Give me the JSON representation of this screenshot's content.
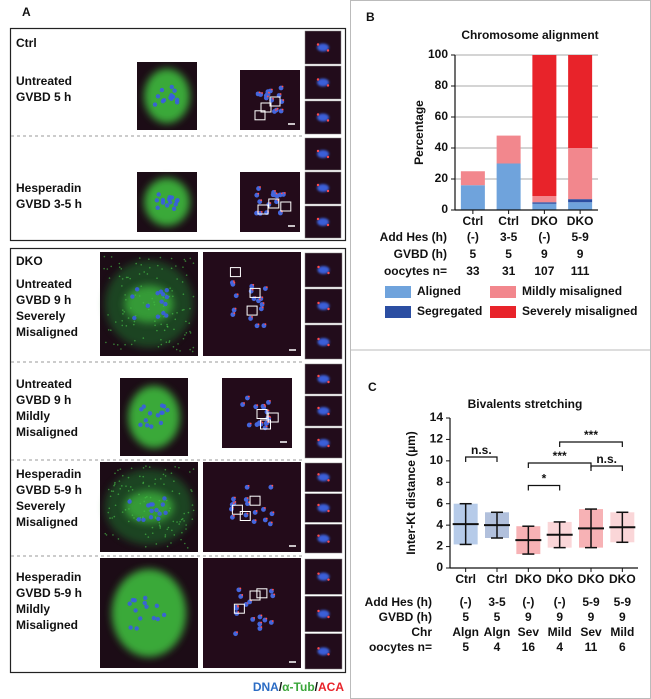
{
  "panel_a": {
    "label": "A",
    "ctrl": {
      "title": "Ctrl",
      "rows": [
        {
          "lines": [
            "Untreated",
            "GVBD 5 h"
          ]
        },
        {
          "lines": [
            "Hesperadin",
            "GVBD 3-5 h"
          ]
        }
      ]
    },
    "dko": {
      "title": "DKO",
      "rows": [
        {
          "lines": [
            "Untreated",
            "GVBD 9 h"
          ],
          "status": [
            "Severely",
            "Misaligned"
          ],
          "color": "#e8232a"
        },
        {
          "lines": [
            "Untreated",
            "GVBD 9 h"
          ],
          "status": [
            "Mildly",
            "Misaligned"
          ],
          "color": "#e45fb0"
        },
        {
          "lines": [
            "Hesperadin",
            "GVBD 5-9 h"
          ],
          "status": [
            "Severely",
            "Misaligned"
          ],
          "color": "#e8232a"
        },
        {
          "lines": [
            "Hesperadin",
            "GVBD 5-9 h"
          ],
          "status": [
            "Mildly",
            "Misaligned"
          ],
          "color": "#e45fb0"
        }
      ]
    },
    "legend": {
      "dna": "DNA",
      "sep": "/",
      "tub": "α-Tub",
      "aca": "ACA",
      "dna_color": "#2b6cc4",
      "tub_color": "#3aa63a",
      "aca_color": "#e8232a"
    }
  },
  "chart_data": [
    {
      "type": "bar",
      "stacked": true,
      "label": "B",
      "title": "Chromosome alignment",
      "y_label": "Percentage",
      "categories": [
        "Ctrl",
        "Ctrl",
        "DKO",
        "DKO"
      ],
      "series": [
        {
          "name": "Aligned",
          "color": "#6fa3dc",
          "values": [
            16,
            30,
            4,
            5
          ]
        },
        {
          "name": "Segregated",
          "color": "#2b4ea2",
          "values": [
            0,
            0,
            1,
            2
          ]
        },
        {
          "name": "Mildly misaligned",
          "color": "#f2878d",
          "values": [
            9,
            18,
            4,
            33
          ]
        },
        {
          "name": "Severely misaligned",
          "color": "#e8232a",
          "values": [
            0,
            0,
            91,
            60
          ]
        }
      ],
      "ylim": [
        0,
        100
      ],
      "yticks": [
        0,
        20,
        40,
        60,
        80,
        100
      ],
      "grid": true,
      "table": [
        {
          "label": "Add Hes (h)",
          "values": [
            "(-)",
            "3-5",
            "(-)",
            "5-9"
          ]
        },
        {
          "label": "GVBD (h)",
          "values": [
            "5",
            "5",
            "9",
            "9"
          ]
        },
        {
          "label": "oocytes n=",
          "values": [
            "33",
            "31",
            "107",
            "111"
          ]
        }
      ]
    },
    {
      "type": "dotplot",
      "label": "C",
      "title": "Bivalents stretching",
      "y_label": "Inter-Kt distance (µm)",
      "categories": [
        "Ctrl",
        "Ctrl",
        "DKO",
        "DKO",
        "DKO",
        "DKO"
      ],
      "values": [
        4.1,
        4.0,
        2.6,
        3.1,
        3.7,
        3.8
      ],
      "errors": [
        1.9,
        1.2,
        1.3,
        1.2,
        1.8,
        1.4
      ],
      "colors": [
        "#2f6bbf",
        "#1f4a9a",
        "#e8232a",
        "#f08a90",
        "#e8232a",
        "#f08a90"
      ],
      "ylim": [
        0,
        14
      ],
      "yticks": [
        0,
        2,
        4,
        6,
        8,
        10,
        12,
        14
      ],
      "annotations": [
        "n.s.",
        "*",
        "***",
        "n.s.",
        "***"
      ],
      "table": [
        {
          "label": "Add Hes (h)",
          "values": [
            "(-)",
            "3-5",
            "(-)",
            "(-)",
            "5-9",
            "5-9"
          ]
        },
        {
          "label": "GVBD (h)",
          "values": [
            "5",
            "5",
            "9",
            "9",
            "9",
            "9"
          ]
        },
        {
          "label": "Chr",
          "values": [
            "Algn",
            "Algn",
            "Sev",
            "Mild",
            "Sev",
            "Mild"
          ]
        },
        {
          "label": "oocytes n=",
          "values": [
            "5",
            "4",
            "16",
            "4",
            "11",
            "6"
          ]
        }
      ]
    }
  ]
}
